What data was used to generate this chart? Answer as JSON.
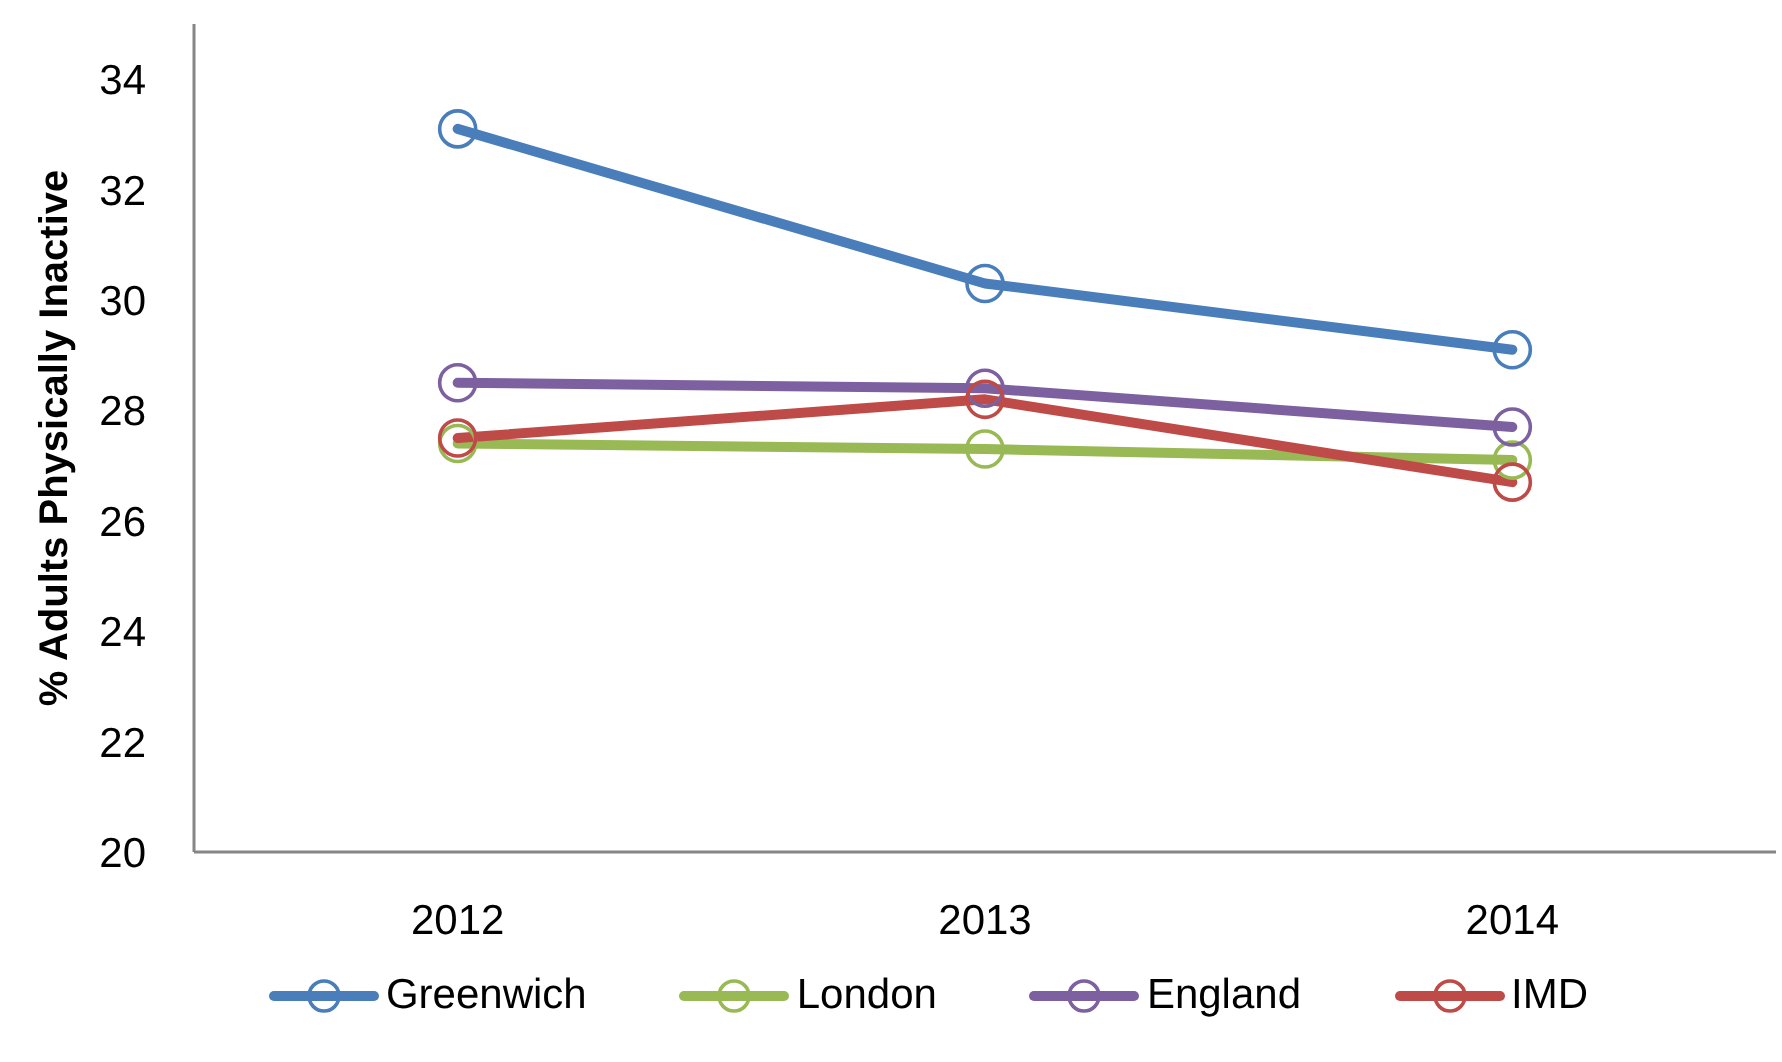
{
  "chart_data": {
    "type": "line",
    "ylabel": "% Adults Physically Inactive",
    "categories": [
      "2012",
      "2013",
      "2014"
    ],
    "series": [
      {
        "name": "Greenwich",
        "color": "#4a7ebb",
        "values": [
          33.1,
          30.3,
          29.1
        ]
      },
      {
        "name": "London",
        "color": "#98b954",
        "values": [
          27.4,
          27.3,
          27.1
        ]
      },
      {
        "name": "England",
        "color": "#7d60a0",
        "values": [
          28.5,
          28.4,
          27.7
        ]
      },
      {
        "name": "IMD",
        "color": "#be4b48",
        "values": [
          27.5,
          28.2,
          26.7
        ]
      }
    ],
    "ylim": [
      20,
      35
    ],
    "yticks": [
      20,
      22,
      24,
      26,
      28,
      30,
      32,
      34
    ],
    "legend": "bottom",
    "marker": "circle",
    "line_style": "solid"
  }
}
